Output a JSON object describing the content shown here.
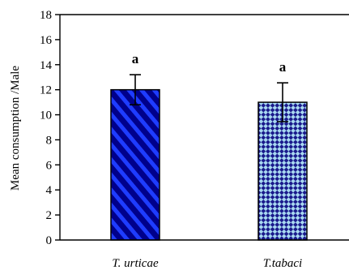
{
  "chart_data": {
    "type": "bar",
    "title": "",
    "xlabel": "",
    "ylabel": "Mean consumption /Male",
    "ylim": [
      0,
      18
    ],
    "yticks": [
      0,
      2,
      4,
      6,
      8,
      10,
      12,
      14,
      16,
      18
    ],
    "categories": [
      "T. urticae",
      "T.tabaci"
    ],
    "values": [
      12.0,
      11.0
    ],
    "errors": [
      1.2,
      1.55
    ],
    "significance_labels": [
      "a",
      "a"
    ],
    "grid": false,
    "legend": "none",
    "bar_colors": {
      "T. urticae": {
        "base": "#00008B",
        "stripe": "#1E3CFF",
        "pattern": "diagonal-stripes"
      },
      "T.tabaci": {
        "base": "#1A1A8C",
        "stripe": "#A8D8F0",
        "pattern": "checker-diagonal"
      }
    },
    "axis_color": "#000000"
  }
}
